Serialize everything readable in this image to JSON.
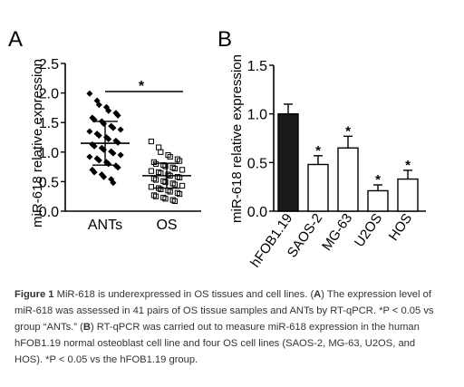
{
  "panels": {
    "a": {
      "letter": "A"
    },
    "b": {
      "letter": "B"
    }
  },
  "chart_data": [
    {
      "type": "scatter",
      "panel": "A",
      "ylabel": "miR-618 relative expression",
      "xlabel": "",
      "ylim": [
        0,
        2.5
      ],
      "yticks": [
        "0.0",
        "0.5",
        "1.0",
        "1.5",
        "2.0",
        "2.5"
      ],
      "categories": [
        "ANTs",
        "OS"
      ],
      "significance": "*",
      "groups": [
        {
          "name": "ANTs",
          "mean": 1.15,
          "sd": 0.37,
          "values": [
            1.99,
            1.87,
            1.8,
            1.76,
            1.7,
            1.66,
            1.62,
            1.58,
            1.55,
            1.52,
            1.48,
            1.44,
            1.41,
            1.38,
            1.35,
            1.31,
            1.28,
            1.25,
            1.22,
            1.19,
            1.16,
            1.13,
            1.1,
            1.07,
            1.04,
            1.01,
            0.98,
            0.95,
            0.92,
            0.89,
            0.86,
            0.83,
            0.8,
            0.77,
            0.74,
            0.7,
            0.66,
            0.62,
            0.58,
            0.54,
            0.48
          ]
        },
        {
          "name": "OS",
          "mean": 0.6,
          "sd": 0.21,
          "values": [
            1.18,
            1.08,
            1.0,
            0.95,
            0.92,
            0.88,
            0.85,
            0.83,
            0.8,
            0.78,
            0.76,
            0.74,
            0.72,
            0.7,
            0.68,
            0.66,
            0.64,
            0.62,
            0.6,
            0.58,
            0.57,
            0.55,
            0.53,
            0.51,
            0.49,
            0.47,
            0.45,
            0.43,
            0.41,
            0.39,
            0.37,
            0.35,
            0.33,
            0.31,
            0.29,
            0.27,
            0.25,
            0.23,
            0.21,
            0.19,
            0.17
          ]
        }
      ]
    },
    {
      "type": "bar",
      "panel": "B",
      "ylabel": "miR-618 relative expression",
      "xlabel": "",
      "ylim": [
        0,
        1.5
      ],
      "yticks": [
        "0.0",
        "0.5",
        "1.0",
        "1.5"
      ],
      "categories": [
        "hFOB1.19",
        "SAOS-2",
        "MG-63",
        "U2OS",
        "HOS"
      ],
      "values": [
        1.0,
        0.48,
        0.65,
        0.21,
        0.33
      ],
      "errors": [
        0.1,
        0.09,
        0.12,
        0.06,
        0.09
      ],
      "significance": [
        "",
        "*",
        "*",
        "*",
        "*"
      ],
      "fill_colors": [
        "#1a1a1a",
        "#ffffff",
        "#ffffff",
        "#ffffff",
        "#ffffff"
      ]
    }
  ],
  "caption": {
    "figure_label": "Figure 1",
    "intro": " MiR-618 is underexpressed in OS tissues and cell lines. (",
    "a_ref": "A",
    "a_text": ") The expression level of miR-618 was assessed in 41 pairs of OS tissue samples and ANTs by RT-qPCR. *P < 0.05 vs group “ANTs.” (",
    "b_ref": "B",
    "b_text": ") RT-qPCR was carried out to measure miR-618 expression in the human hFOB1.19 normal osteoblast cell line and four OS cell lines (SAOS-2, MG-63, U2OS, and HOS). *P < 0.05 vs the hFOB1.19 group."
  }
}
